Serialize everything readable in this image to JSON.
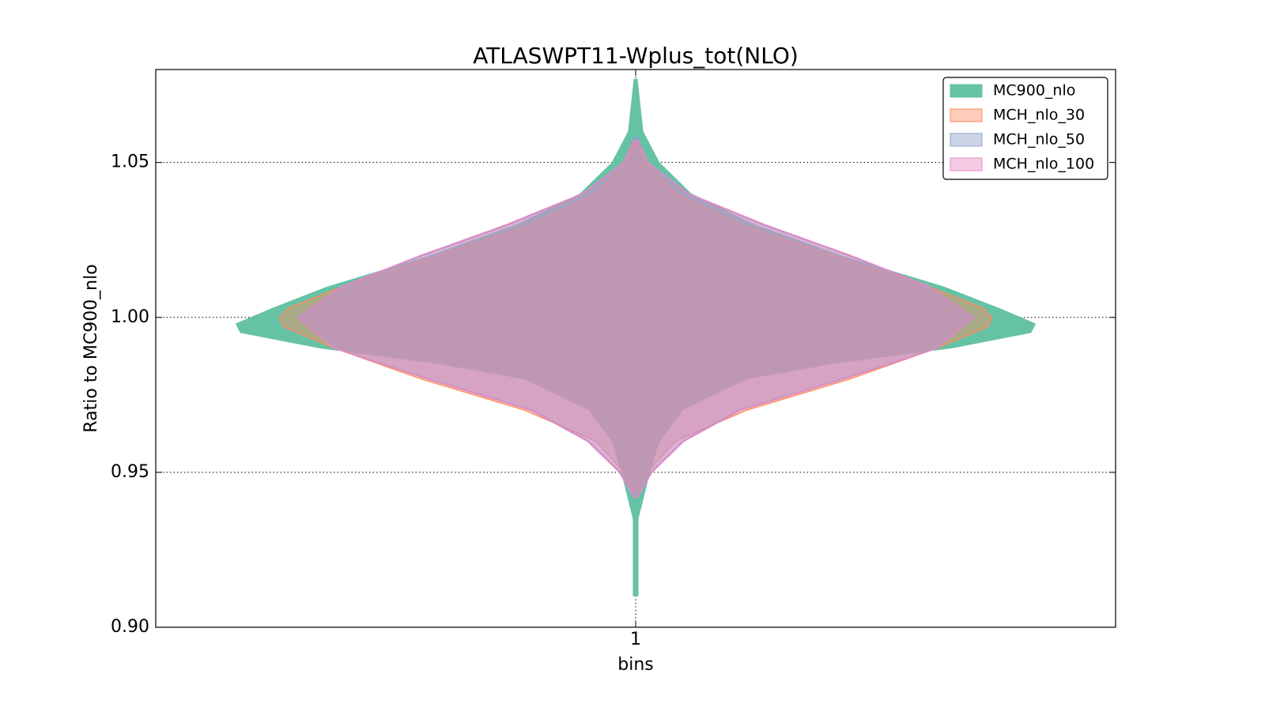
{
  "chart_data": {
    "type": "violin",
    "title": "ATLASWPT11-Wplus_tot(NLO)",
    "xlabel": "bins",
    "ylabel": "Ratio to MC900_nlo",
    "categories": [
      "1"
    ],
    "xlim": [
      0.5,
      1.5
    ],
    "ylim": [
      0.9,
      1.08
    ],
    "yticks": [
      {
        "value": 0.9,
        "label": "0.90"
      },
      0.95,
      {
        "value": 1.0,
        "label": "1.00"
      },
      1.05
    ],
    "grid": true,
    "legend": "upper right",
    "series": [
      {
        "name": "MC900_nlo",
        "color": "#66c2a5",
        "y": [
          1.077,
          1.06,
          1.05,
          1.04,
          1.03,
          1.02,
          1.01,
          1.003,
          0.998,
          0.995,
          0.99,
          0.985,
          0.98,
          0.97,
          0.96,
          0.95,
          0.94,
          0.935,
          0.91
        ],
        "widths": [
          0.002,
          0.008,
          0.025,
          0.058,
          0.124,
          0.214,
          0.321,
          0.379,
          0.417,
          0.412,
          0.329,
          0.206,
          0.115,
          0.049,
          0.025,
          0.015,
          0.007,
          0.003,
          0.003
        ]
      },
      {
        "name": "MCH_nlo_30",
        "color": "#fc8d62",
        "y": [
          1.057,
          1.05,
          1.04,
          1.03,
          1.02,
          1.01,
          1.003,
          1.0,
          0.997,
          0.99,
          0.98,
          0.97,
          0.96,
          0.95,
          0.944
        ],
        "widths": [
          0.002,
          0.01,
          0.041,
          0.107,
          0.206,
          0.305,
          0.362,
          0.371,
          0.367,
          0.313,
          0.222,
          0.115,
          0.041,
          0.012,
          0.002
        ]
      },
      {
        "name": "MCH_nlo_50",
        "color": "#8da0cb",
        "y": [
          1.058,
          1.05,
          1.04,
          1.03,
          1.02,
          1.01,
          1.0,
          0.99,
          0.98,
          0.97,
          0.96,
          0.95,
          0.943
        ],
        "widths": [
          0.002,
          0.012,
          0.054,
          0.132,
          0.222,
          0.305,
          0.353,
          0.313,
          0.214,
          0.107,
          0.049,
          0.016,
          0.002
        ]
      },
      {
        "name": "MCH_nlo_100",
        "color": "#e78ac3",
        "y": [
          1.057,
          1.05,
          1.04,
          1.03,
          1.02,
          1.01,
          1.0,
          0.99,
          0.98,
          0.97,
          0.96,
          0.95,
          0.942
        ],
        "widths": [
          0.002,
          0.013,
          0.055,
          0.134,
          0.224,
          0.306,
          0.352,
          0.314,
          0.216,
          0.109,
          0.05,
          0.017,
          0.002
        ]
      }
    ]
  }
}
